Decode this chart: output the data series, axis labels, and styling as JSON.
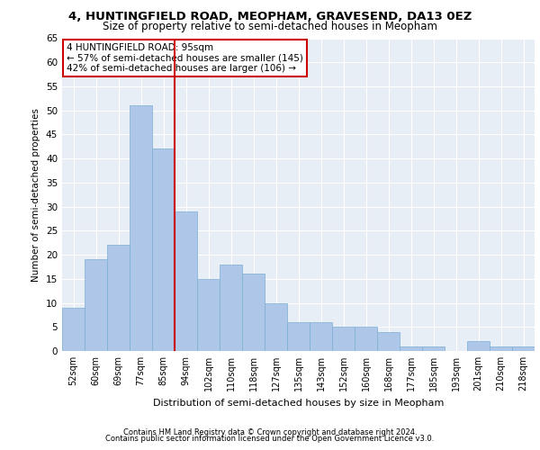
{
  "title1": "4, HUNTINGFIELD ROAD, MEOPHAM, GRAVESEND, DA13 0EZ",
  "title2": "Size of property relative to semi-detached houses in Meopham",
  "xlabel": "Distribution of semi-detached houses by size in Meopham",
  "ylabel": "Number of semi-detached properties",
  "categories": [
    "52sqm",
    "60sqm",
    "69sqm",
    "77sqm",
    "85sqm",
    "94sqm",
    "102sqm",
    "110sqm",
    "118sqm",
    "127sqm",
    "135sqm",
    "143sqm",
    "152sqm",
    "160sqm",
    "168sqm",
    "177sqm",
    "185sqm",
    "193sqm",
    "201sqm",
    "210sqm",
    "218sqm"
  ],
  "values": [
    9,
    19,
    22,
    51,
    42,
    29,
    15,
    18,
    16,
    10,
    6,
    6,
    5,
    5,
    4,
    1,
    1,
    0,
    2,
    1,
    1
  ],
  "bar_color": "#aec6e8",
  "bar_edge_color": "#7aafd4",
  "property_index": 5,
  "annotation_title": "4 HUNTINGFIELD ROAD: 95sqm",
  "annotation_line1": "← 57% of semi-detached houses are smaller (145)",
  "annotation_line2": "42% of semi-detached houses are larger (106) →",
  "vline_color": "#cc0000",
  "annotation_box_color": "#cc0000",
  "ylim": [
    0,
    65
  ],
  "yticks": [
    0,
    5,
    10,
    15,
    20,
    25,
    30,
    35,
    40,
    45,
    50,
    55,
    60,
    65
  ],
  "background_color": "#e8eef5",
  "footer1": "Contains HM Land Registry data © Crown copyright and database right 2024.",
  "footer2": "Contains public sector information licensed under the Open Government Licence v3.0."
}
